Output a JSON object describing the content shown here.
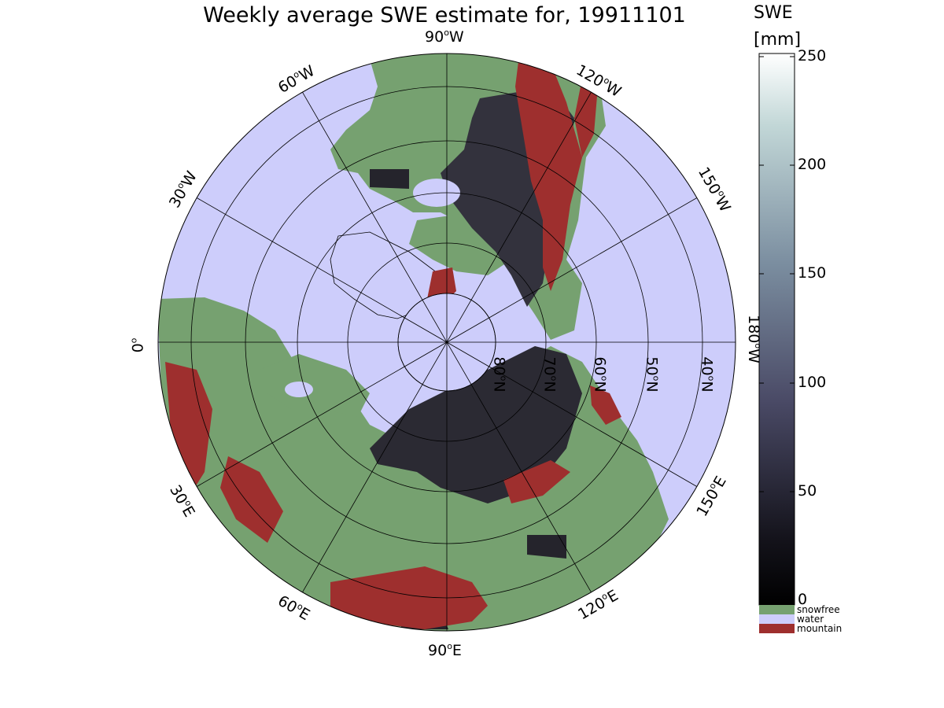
{
  "title": "Weekly average SWE estimate for, 19911101",
  "colorbar": {
    "title_line1": "SWE",
    "title_line2": "[mm]",
    "ticks": [
      "250",
      "200",
      "150",
      "100",
      "50",
      "0"
    ],
    "colormap": "bone (black to white)",
    "range_mm": [
      0,
      250
    ]
  },
  "legend": [
    {
      "label": "snowfree",
      "color": "#76a170"
    },
    {
      "label": "water",
      "color": "#cdcdfb"
    },
    {
      "label": "mountain",
      "color": "#9e2f2e"
    }
  ],
  "colors": {
    "land_snowfree": "#76a170",
    "water": "#cdcdfb",
    "mountain": "#9e2f2e",
    "snow_dark": "#25242c",
    "grid": "#000000"
  },
  "longitude_labels": [
    {
      "deg": "90",
      "dir": "W"
    },
    {
      "deg": "120",
      "dir": "W"
    },
    {
      "deg": "150",
      "dir": "W"
    },
    {
      "deg": "180",
      "dir": "W"
    },
    {
      "deg": "150",
      "dir": "E"
    },
    {
      "deg": "120",
      "dir": "E"
    },
    {
      "deg": "90",
      "dir": "E"
    },
    {
      "deg": "60",
      "dir": "E"
    },
    {
      "deg": "30",
      "dir": "E"
    },
    {
      "deg": "0",
      "dir": ""
    },
    {
      "deg": "30",
      "dir": "W"
    },
    {
      "deg": "60",
      "dir": "W"
    }
  ],
  "latitude_labels": [
    {
      "deg": "80",
      "dir": "N"
    },
    {
      "deg": "70",
      "dir": "N"
    },
    {
      "deg": "60",
      "dir": "N"
    },
    {
      "deg": "50",
      "dir": "N"
    },
    {
      "deg": "40",
      "dir": "N"
    }
  ],
  "projection": "north polar stereographic"
}
